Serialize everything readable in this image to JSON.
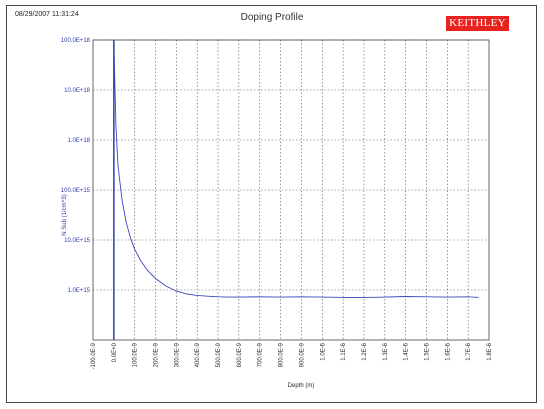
{
  "header": {
    "timestamp": "08/29/2007 11:31:24",
    "logo_text": "KEITHLEY",
    "logo_color": "#e8231f"
  },
  "chart_data": {
    "type": "line",
    "title": "Doping Profile",
    "xlabel": "Depth (m)",
    "ylabel": "N Sub (1/cm^3)",
    "y_scale": "log",
    "ylim": [
      100000000000000.0,
      1e+20
    ],
    "xlim": [
      -1e-07,
      1.8e-06
    ],
    "grid": true,
    "x_tick_labels": [
      "-100.0E-9",
      "0.0E+0",
      "100.0E-9",
      "200.0E-9",
      "300.0E-9",
      "400.0E-9",
      "500.0E-9",
      "600.0E-9",
      "700.0E-9",
      "800.0E-9",
      "900.0E-9",
      "1.0E-6",
      "1.1E-6",
      "1.2E-6",
      "1.3E-6",
      "1.4E-6",
      "1.5E-6",
      "1.6E-6",
      "1.7E-6",
      "1.8E-6"
    ],
    "y_tick_labels": [
      "100.0E+18",
      "10.0E+18",
      "1.0E+18",
      "100.0E+15",
      "10.0E+15",
      "1.0E+15"
    ],
    "series": [
      {
        "color": "#3b47b8",
        "x": [
          0,
          1e-08,
          2e-08,
          4e-08,
          6e-08,
          8e-08,
          1e-07,
          1.3e-07,
          1.6e-07,
          2e-07,
          2.5e-07,
          3e-07,
          3.5e-07,
          4e-07,
          4.5e-07,
          5e-07,
          5.5e-07,
          6e-07,
          7e-07,
          8e-07,
          9e-07,
          1e-06,
          1.1e-06,
          1.2e-06,
          1.3e-06,
          1.4e-06,
          1.5e-06,
          1.6e-06,
          1.7e-06,
          1.75e-06
        ],
        "y": [
          1e+20,
          2e+18,
          3e+17,
          6e+16,
          2.2e+16,
          1.1e+16,
          6500000000000000.0,
          3800000000000000.0,
          2500000000000000.0,
          1700000000000000.0,
          1200000000000000.0,
          950000000000000.0,
          830000000000000.0,
          780000000000000.0,
          750000000000000.0,
          730000000000000.0,
          720000000000000.0,
          720000000000000.0,
          730000000000000.0,
          720000000000000.0,
          730000000000000.0,
          720000000000000.0,
          710000000000000.0,
          710000000000000.0,
          720000000000000.0,
          740000000000000.0,
          730000000000000.0,
          720000000000000.0,
          730000000000000.0,
          710000000000000.0
        ]
      }
    ]
  }
}
